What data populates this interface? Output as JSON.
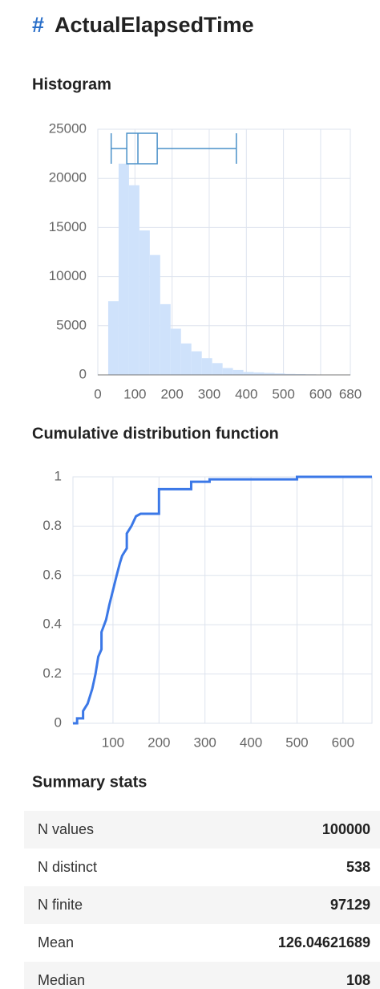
{
  "header": {
    "icon": "#",
    "title": "ActualElapsedTime"
  },
  "sections": [
    "Histogram",
    "Cumulative distribution function",
    "Summary stats"
  ],
  "chart_data": [
    {
      "type": "histogram",
      "bins": [
        28,
        56,
        84,
        112,
        140,
        168,
        196,
        224,
        252,
        280,
        308,
        336,
        364,
        392,
        420,
        448,
        476,
        504,
        532,
        560,
        588,
        616,
        644,
        672
      ],
      "values": [
        7500,
        21500,
        19300,
        14700,
        12200,
        7200,
        4700,
        3200,
        2400,
        1700,
        1200,
        700,
        500,
        300,
        250,
        200,
        150,
        100,
        80,
        60,
        40,
        30,
        20
      ],
      "color": "#cfe2fb",
      "boxplot": {
        "whisker_low": 36,
        "q1": 78,
        "median": 108,
        "q3": 160,
        "whisker_high": 373,
        "color": "#4a90c8"
      },
      "xlim": [
        0,
        680
      ],
      "xticks": [
        0,
        100,
        200,
        300,
        400,
        500,
        600,
        680
      ],
      "ylim": [
        0,
        25000
      ],
      "yticks": [
        0,
        5000,
        10000,
        15000,
        20000,
        25000
      ],
      "grid": true
    },
    {
      "type": "line",
      "x": [
        13,
        22,
        22,
        35,
        35,
        45,
        55,
        62,
        68,
        75,
        75,
        85,
        92,
        100,
        108,
        115,
        120,
        130,
        130,
        140,
        150,
        160,
        200,
        200,
        270,
        270,
        310,
        310,
        500,
        500,
        663
      ],
      "values": [
        0,
        0,
        0.02,
        0.02,
        0.05,
        0.08,
        0.14,
        0.2,
        0.27,
        0.3,
        0.37,
        0.42,
        0.48,
        0.54,
        0.6,
        0.65,
        0.68,
        0.71,
        0.77,
        0.8,
        0.84,
        0.85,
        0.85,
        0.95,
        0.95,
        0.98,
        0.98,
        0.99,
        0.99,
        1,
        1
      ],
      "color": "#3b78e7",
      "xlim": [
        13,
        663
      ],
      "xticks": [
        100,
        200,
        300,
        400,
        500,
        600
      ],
      "ylim": [
        0,
        1
      ],
      "yticks": [
        0,
        0.2,
        0.4,
        0.6,
        0.8,
        1
      ],
      "grid": true
    }
  ],
  "table": {
    "rows": [
      [
        "N values",
        "100000"
      ],
      [
        "N distinct",
        "538"
      ],
      [
        "N finite",
        "97129"
      ],
      [
        "Mean",
        "126.04621689"
      ],
      [
        "Median",
        "108"
      ]
    ]
  }
}
